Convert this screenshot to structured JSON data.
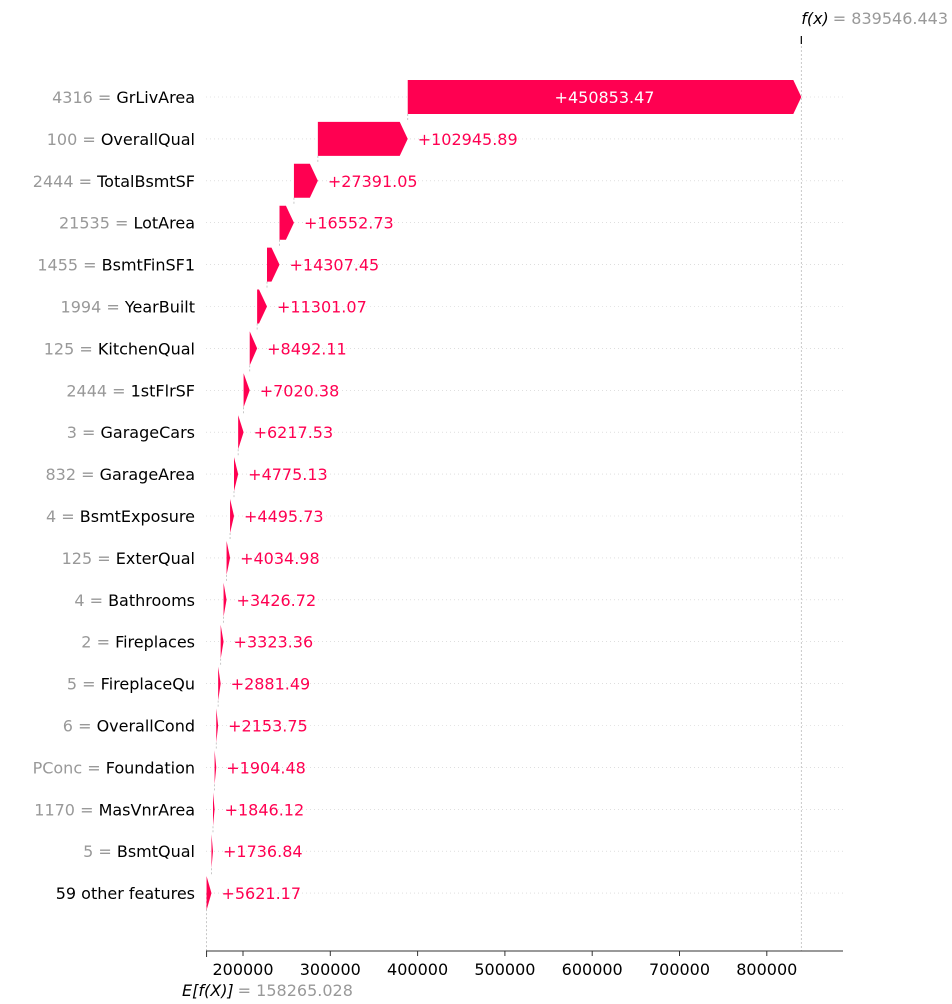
{
  "chart_data": {
    "type": "waterfall",
    "base_value_label": "E[f(X)]",
    "base_value_text": "= 158265.028",
    "base_value": 158265.028,
    "output_value_label": "f(x)",
    "output_value_text": "= 839546.443",
    "output_value": 839546.443,
    "bar_color": "#ff0051",
    "x_ticks": [
      200000,
      300000,
      400000,
      500000,
      600000,
      700000,
      800000
    ],
    "x_tick_labels": [
      "200000",
      "300000",
      "400000",
      "500000",
      "600000",
      "700000",
      "800000"
    ],
    "features": [
      {
        "value": "4316",
        "name": "GrLivArea",
        "contribution": 450853.47,
        "label": "+450853.47"
      },
      {
        "value": "100",
        "name": "OverallQual",
        "contribution": 102945.89,
        "label": "+102945.89"
      },
      {
        "value": "2444",
        "name": "TotalBsmtSF",
        "contribution": 27391.05,
        "label": "+27391.05"
      },
      {
        "value": "21535",
        "name": "LotArea",
        "contribution": 16552.73,
        "label": "+16552.73"
      },
      {
        "value": "1455",
        "name": "BsmtFinSF1",
        "contribution": 14307.45,
        "label": "+14307.45"
      },
      {
        "value": "1994",
        "name": "YearBuilt",
        "contribution": 11301.07,
        "label": "+11301.07"
      },
      {
        "value": "125",
        "name": "KitchenQual",
        "contribution": 8492.11,
        "label": "+8492.11"
      },
      {
        "value": "2444",
        "name": "1stFlrSF",
        "contribution": 7020.38,
        "label": "+7020.38"
      },
      {
        "value": "3",
        "name": "GarageCars",
        "contribution": 6217.53,
        "label": "+6217.53"
      },
      {
        "value": "832",
        "name": "GarageArea",
        "contribution": 4775.13,
        "label": "+4775.13"
      },
      {
        "value": "4",
        "name": "BsmtExposure",
        "contribution": 4495.73,
        "label": "+4495.73"
      },
      {
        "value": "125",
        "name": "ExterQual",
        "contribution": 4034.98,
        "label": "+4034.98"
      },
      {
        "value": "4",
        "name": "Bathrooms",
        "contribution": 3426.72,
        "label": "+3426.72"
      },
      {
        "value": "2",
        "name": "Fireplaces",
        "contribution": 3323.36,
        "label": "+3323.36"
      },
      {
        "value": "5",
        "name": "FireplaceQu",
        "contribution": 2881.49,
        "label": "+2881.49"
      },
      {
        "value": "6",
        "name": "OverallCond",
        "contribution": 2153.75,
        "label": "+2153.75"
      },
      {
        "value": "PConc",
        "name": "Foundation",
        "contribution": 1904.48,
        "label": "+1904.48"
      },
      {
        "value": "1170",
        "name": "MasVnrArea",
        "contribution": 1846.12,
        "label": "+1846.12"
      },
      {
        "value": "5",
        "name": "BsmtQual",
        "contribution": 1736.84,
        "label": "+1736.84"
      },
      {
        "value": "",
        "name": "59 other features",
        "contribution": 5621.17,
        "label": "+5621.17"
      }
    ]
  }
}
